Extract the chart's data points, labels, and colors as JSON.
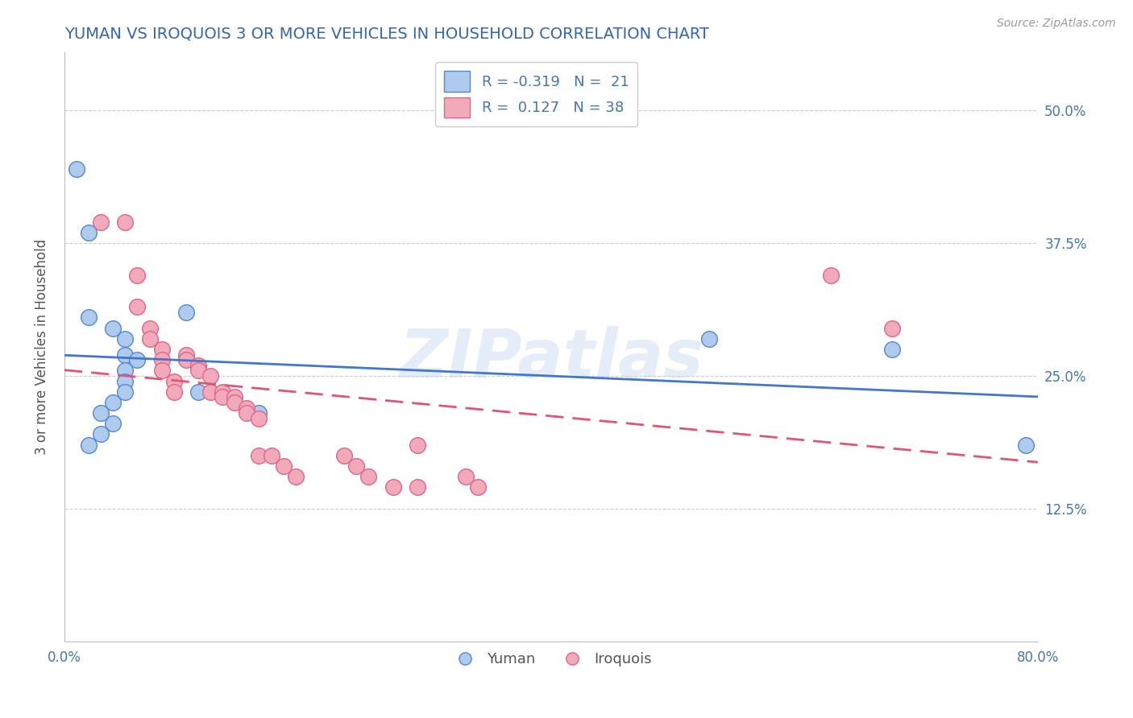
{
  "title": "YUMAN VS IROQUOIS 3 OR MORE VEHICLES IN HOUSEHOLD CORRELATION CHART",
  "source_text": "Source: ZipAtlas.com",
  "ylabel": "3 or more Vehicles in Household",
  "xlim": [
    0.0,
    0.8
  ],
  "ylim": [
    0.0,
    0.555
  ],
  "ytick_positions": [
    0.0,
    0.125,
    0.25,
    0.375,
    0.5
  ],
  "ytick_labels": [
    "",
    "12.5%",
    "25.0%",
    "37.5%",
    "50.0%"
  ],
  "yuman_color": "#aecbee",
  "iroquois_color": "#f2aabb",
  "yuman_edge_color": "#5588cc",
  "iroquois_edge_color": "#dd6688",
  "yuman_line_color": "#4477cc",
  "iroquois_line_color": "#dd5577",
  "legend_line1": "R = -0.319   N =  21",
  "legend_line2": "R =  0.127   N = 38",
  "watermark": "ZIPatlas",
  "yuman_points": [
    [
      0.01,
      0.445
    ],
    [
      0.02,
      0.385
    ],
    [
      0.02,
      0.305
    ],
    [
      0.04,
      0.295
    ],
    [
      0.05,
      0.285
    ],
    [
      0.05,
      0.27
    ],
    [
      0.06,
      0.265
    ],
    [
      0.05,
      0.255
    ],
    [
      0.05,
      0.245
    ],
    [
      0.05,
      0.235
    ],
    [
      0.04,
      0.225
    ],
    [
      0.03,
      0.215
    ],
    [
      0.04,
      0.205
    ],
    [
      0.03,
      0.195
    ],
    [
      0.02,
      0.185
    ],
    [
      0.1,
      0.31
    ],
    [
      0.11,
      0.235
    ],
    [
      0.16,
      0.215
    ],
    [
      0.53,
      0.285
    ],
    [
      0.68,
      0.275
    ],
    [
      0.79,
      0.185
    ]
  ],
  "iroquois_points": [
    [
      0.03,
      0.395
    ],
    [
      0.05,
      0.395
    ],
    [
      0.06,
      0.345
    ],
    [
      0.06,
      0.315
    ],
    [
      0.07,
      0.295
    ],
    [
      0.07,
      0.285
    ],
    [
      0.08,
      0.275
    ],
    [
      0.08,
      0.265
    ],
    [
      0.08,
      0.255
    ],
    [
      0.09,
      0.245
    ],
    [
      0.09,
      0.235
    ],
    [
      0.1,
      0.27
    ],
    [
      0.1,
      0.265
    ],
    [
      0.11,
      0.26
    ],
    [
      0.11,
      0.255
    ],
    [
      0.12,
      0.25
    ],
    [
      0.12,
      0.235
    ],
    [
      0.13,
      0.235
    ],
    [
      0.13,
      0.23
    ],
    [
      0.14,
      0.23
    ],
    [
      0.14,
      0.225
    ],
    [
      0.15,
      0.22
    ],
    [
      0.15,
      0.215
    ],
    [
      0.16,
      0.21
    ],
    [
      0.16,
      0.175
    ],
    [
      0.17,
      0.175
    ],
    [
      0.18,
      0.165
    ],
    [
      0.19,
      0.155
    ],
    [
      0.23,
      0.175
    ],
    [
      0.24,
      0.165
    ],
    [
      0.25,
      0.155
    ],
    [
      0.27,
      0.145
    ],
    [
      0.29,
      0.185
    ],
    [
      0.29,
      0.145
    ],
    [
      0.33,
      0.155
    ],
    [
      0.34,
      0.145
    ],
    [
      0.63,
      0.345
    ],
    [
      0.68,
      0.295
    ]
  ],
  "background_color": "#ffffff",
  "grid_color": "#cccccc",
  "title_color": "#3366aa",
  "axis_label_color": "#555555",
  "tick_label_color": "#4477aa"
}
